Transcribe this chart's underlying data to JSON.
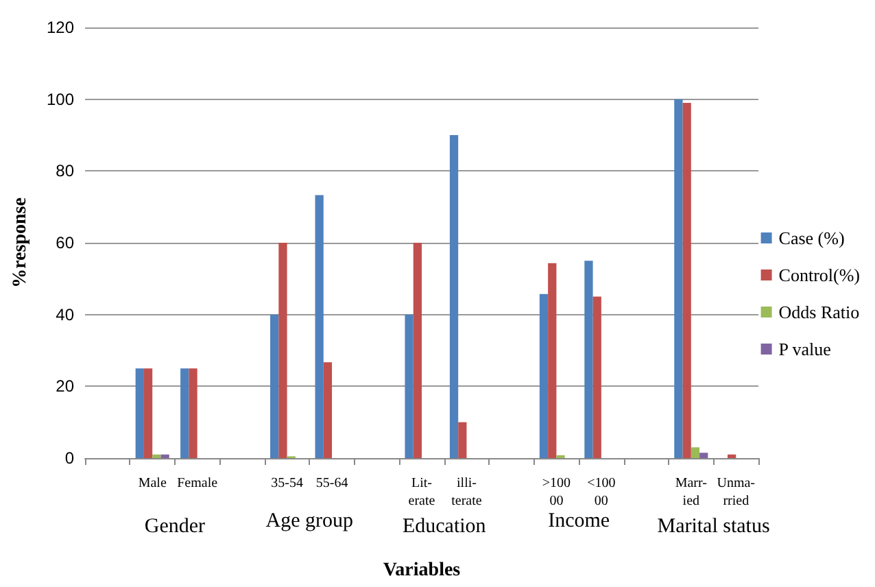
{
  "chart_data": {
    "type": "bar",
    "xlabel": "Variables",
    "ylabel": "%response",
    "categories": [
      null,
      "Male",
      "Female",
      null,
      "35-54",
      "55-64",
      null,
      "Lit-\nerate",
      "illi-\nterate",
      null,
      ">100\n00",
      "<100\n00",
      null,
      "Marr-\nied",
      "Unma-\nrried"
    ],
    "series": [
      {
        "name": "Case (%)",
        "color": "#4f81bd",
        "values": [
          null,
          25,
          25,
          null,
          40,
          73.3,
          null,
          40,
          90,
          null,
          45.7,
          55,
          null,
          100,
          null
        ]
      },
      {
        "name": "Control(%)",
        "color": "#c0504d",
        "values": [
          null,
          25,
          25,
          null,
          60,
          26.7,
          null,
          60,
          10,
          null,
          54.3,
          45,
          null,
          99,
          1
        ]
      },
      {
        "name": "Odds Ratio",
        "color": "#9bbb59",
        "values": [
          null,
          1,
          null,
          null,
          0.5,
          null,
          null,
          null,
          null,
          null,
          0.8,
          null,
          null,
          3,
          null
        ]
      },
      {
        "name": "P value",
        "color": "#8064a2",
        "values": [
          null,
          1,
          null,
          null,
          null,
          null,
          null,
          null,
          null,
          null,
          null,
          null,
          null,
          1.5,
          null
        ]
      }
    ],
    "annotations": [
      "Gender",
      "Age group",
      "Education",
      "Income",
      "Marital status"
    ],
    "ylim": [
      0,
      120
    ],
    "yticks": [
      0,
      20,
      40,
      60,
      80,
      100,
      120
    ],
    "grid": "y",
    "legend": "right"
  }
}
